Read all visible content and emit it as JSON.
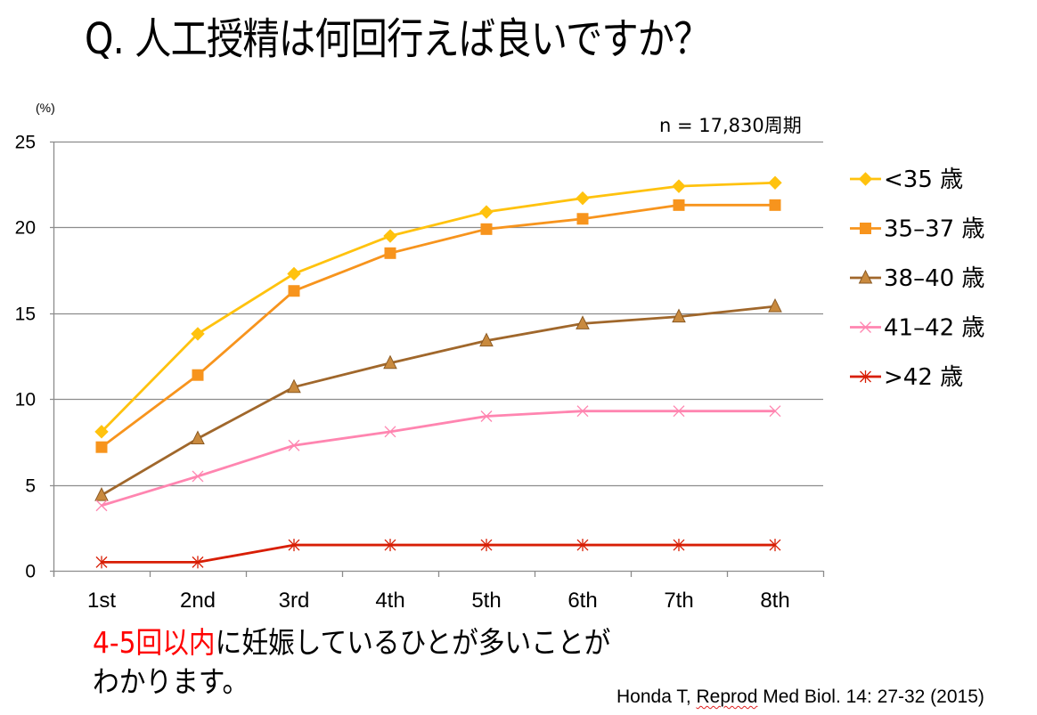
{
  "slide": {
    "title": "Q. 人工授精は何回行えば良いですか？",
    "note_highlight": "4-5回以内",
    "note_line1_rest": "に妊娠しているひとが多いことが",
    "note_line2": "わかります。",
    "citation_author": "Honda T, ",
    "citation_journal_word": "Reprod",
    "citation_rest": " Med Biol. 14: 27-32 (2015)",
    "highlight_color": "#ff0000"
  },
  "chart_data": {
    "type": "line",
    "title": "",
    "xlabel": "",
    "ylabel": "(%)",
    "annotation": "n = 17,830周期",
    "categories": [
      "1st",
      "2nd",
      "3rd",
      "4th",
      "5th",
      "6th",
      "7th",
      "8th"
    ],
    "ylim": [
      0,
      25
    ],
    "yticks": [
      0,
      5,
      10,
      15,
      20,
      25
    ],
    "grid": true,
    "legend_position": "right",
    "series": [
      {
        "name": "<35 歳",
        "color": "#FFC20E",
        "marker": "diamond",
        "marker_fill": "#FFC20E",
        "values": [
          8.1,
          13.8,
          17.3,
          19.5,
          20.9,
          21.7,
          22.4,
          22.6
        ]
      },
      {
        "name": "35–37 歳",
        "color": "#F7941D",
        "marker": "square",
        "marker_fill": "#F7941D",
        "values": [
          7.2,
          11.4,
          16.3,
          18.5,
          19.9,
          20.5,
          21.3,
          21.3
        ]
      },
      {
        "name": "38–40 歳",
        "color": "#A0672B",
        "marker": "triangle",
        "marker_fill": "#C98A3E",
        "values": [
          4.4,
          7.7,
          10.7,
          12.1,
          13.4,
          14.4,
          14.8,
          15.4
        ]
      },
      {
        "name": "41–42 歳",
        "color": "#FF85B0",
        "marker": "x",
        "marker_fill": "none",
        "values": [
          3.8,
          5.5,
          7.3,
          8.1,
          9.0,
          9.3,
          9.3,
          9.3
        ]
      },
      {
        "name": ">42 歳",
        "color": "#D81E05",
        "marker": "asterisk",
        "marker_fill": "none",
        "values": [
          0.5,
          0.5,
          1.5,
          1.5,
          1.5,
          1.5,
          1.5,
          1.5
        ]
      }
    ]
  }
}
